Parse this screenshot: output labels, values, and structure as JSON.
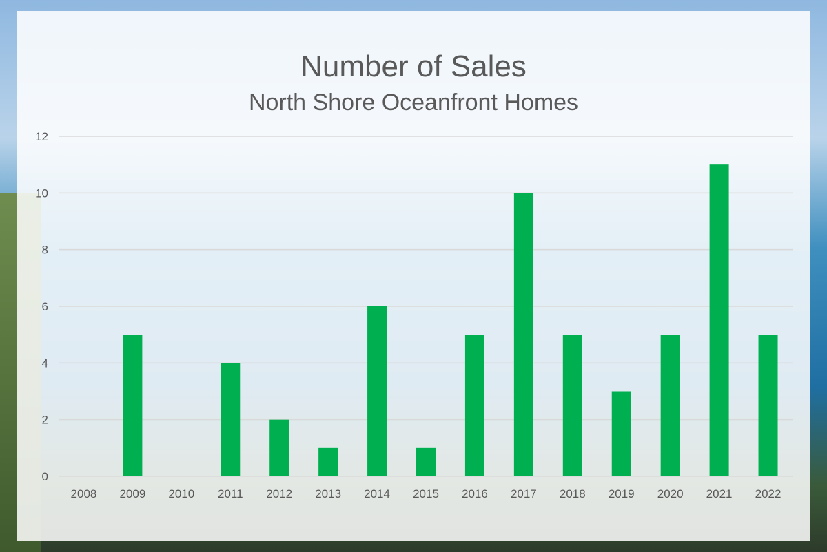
{
  "chart_data": {
    "type": "bar",
    "title": "Number of Sales",
    "subtitle": "North Shore Oceanfront Homes",
    "xlabel": "",
    "ylabel": "",
    "categories": [
      "2008",
      "2009",
      "2010",
      "2011",
      "2012",
      "2013",
      "2014",
      "2015",
      "2016",
      "2017",
      "2018",
      "2019",
      "2020",
      "2021",
      "2022"
    ],
    "values": [
      0,
      5,
      0,
      4,
      2,
      1,
      6,
      1,
      5,
      10,
      5,
      3,
      5,
      11,
      5
    ],
    "ylim": [
      0,
      12
    ],
    "yticks": [
      0,
      2,
      4,
      6,
      8,
      10,
      12
    ],
    "grid": true,
    "legend": "none",
    "bar_color": "#00b050",
    "grid_color": "#d9d9d9"
  }
}
